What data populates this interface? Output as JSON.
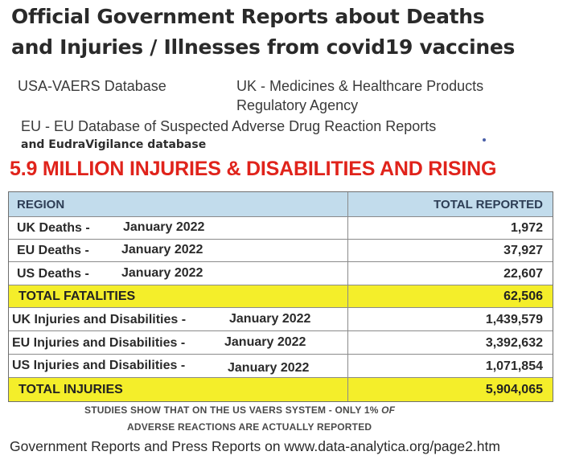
{
  "title": {
    "line1": "Official Government Reports about Deaths",
    "line2": "and Injuries / Illnesses from covid19 vaccines"
  },
  "sources": {
    "usa": "USA-VAERS Database",
    "uk_line1": "UK - Medicines & Healthcare Products",
    "uk_line2": "Regulatory Agency",
    "eu_line1": "EU - EU Database of Suspected  Adverse Drug Reaction Reports",
    "eu_line2": "and EudraVigilance database"
  },
  "headline": "5.9 MILLION INJURIES & DISABILITIES AND RISING",
  "table": {
    "headers": {
      "region": "REGION",
      "total": "TOTAL REPORTED"
    },
    "rows": [
      {
        "label": "UK Deaths  -",
        "date": "January 2022",
        "value": "1,972",
        "highlight": false
      },
      {
        "label": "EU Deaths  -",
        "date": "January 2022",
        "value": "37,927",
        "highlight": false
      },
      {
        "label": "US Deaths  -",
        "date": "January 2022",
        "value": "22,607",
        "highlight": false
      },
      {
        "label": "TOTAL FATALITIES",
        "date": "",
        "value": "62,506",
        "highlight": true
      },
      {
        "label": "UK Injuries and Disabilities -",
        "date": "January 2022",
        "value": "1,439,579",
        "highlight": false
      },
      {
        "label": "EU Injuries and Disabilities -",
        "date": "January 2022",
        "value": "3,392,632",
        "highlight": false
      },
      {
        "label": "US Injuries and Disabilities -",
        "date": "January 2022",
        "value": "1,071,854",
        "highlight": false
      },
      {
        "label": "TOTAL INJURIES",
        "date": "",
        "value": "5,904,065",
        "highlight": true
      }
    ]
  },
  "note": {
    "line1_a": "STUDIES SHOW THAT ON THE US VAERS SYSTEM - ONLY 1% ",
    "line1_b": "OF",
    "line2": "ADVERSE REACTIONS ARE ACTUALLY REPORTED"
  },
  "footer": "Government Reports and Press Reports on www.data-analytica.org/page2.htm",
  "colors": {
    "headline": "#e0231b",
    "header_bg": "#c2dcec",
    "highlight_bg": "#f4ee2a"
  }
}
